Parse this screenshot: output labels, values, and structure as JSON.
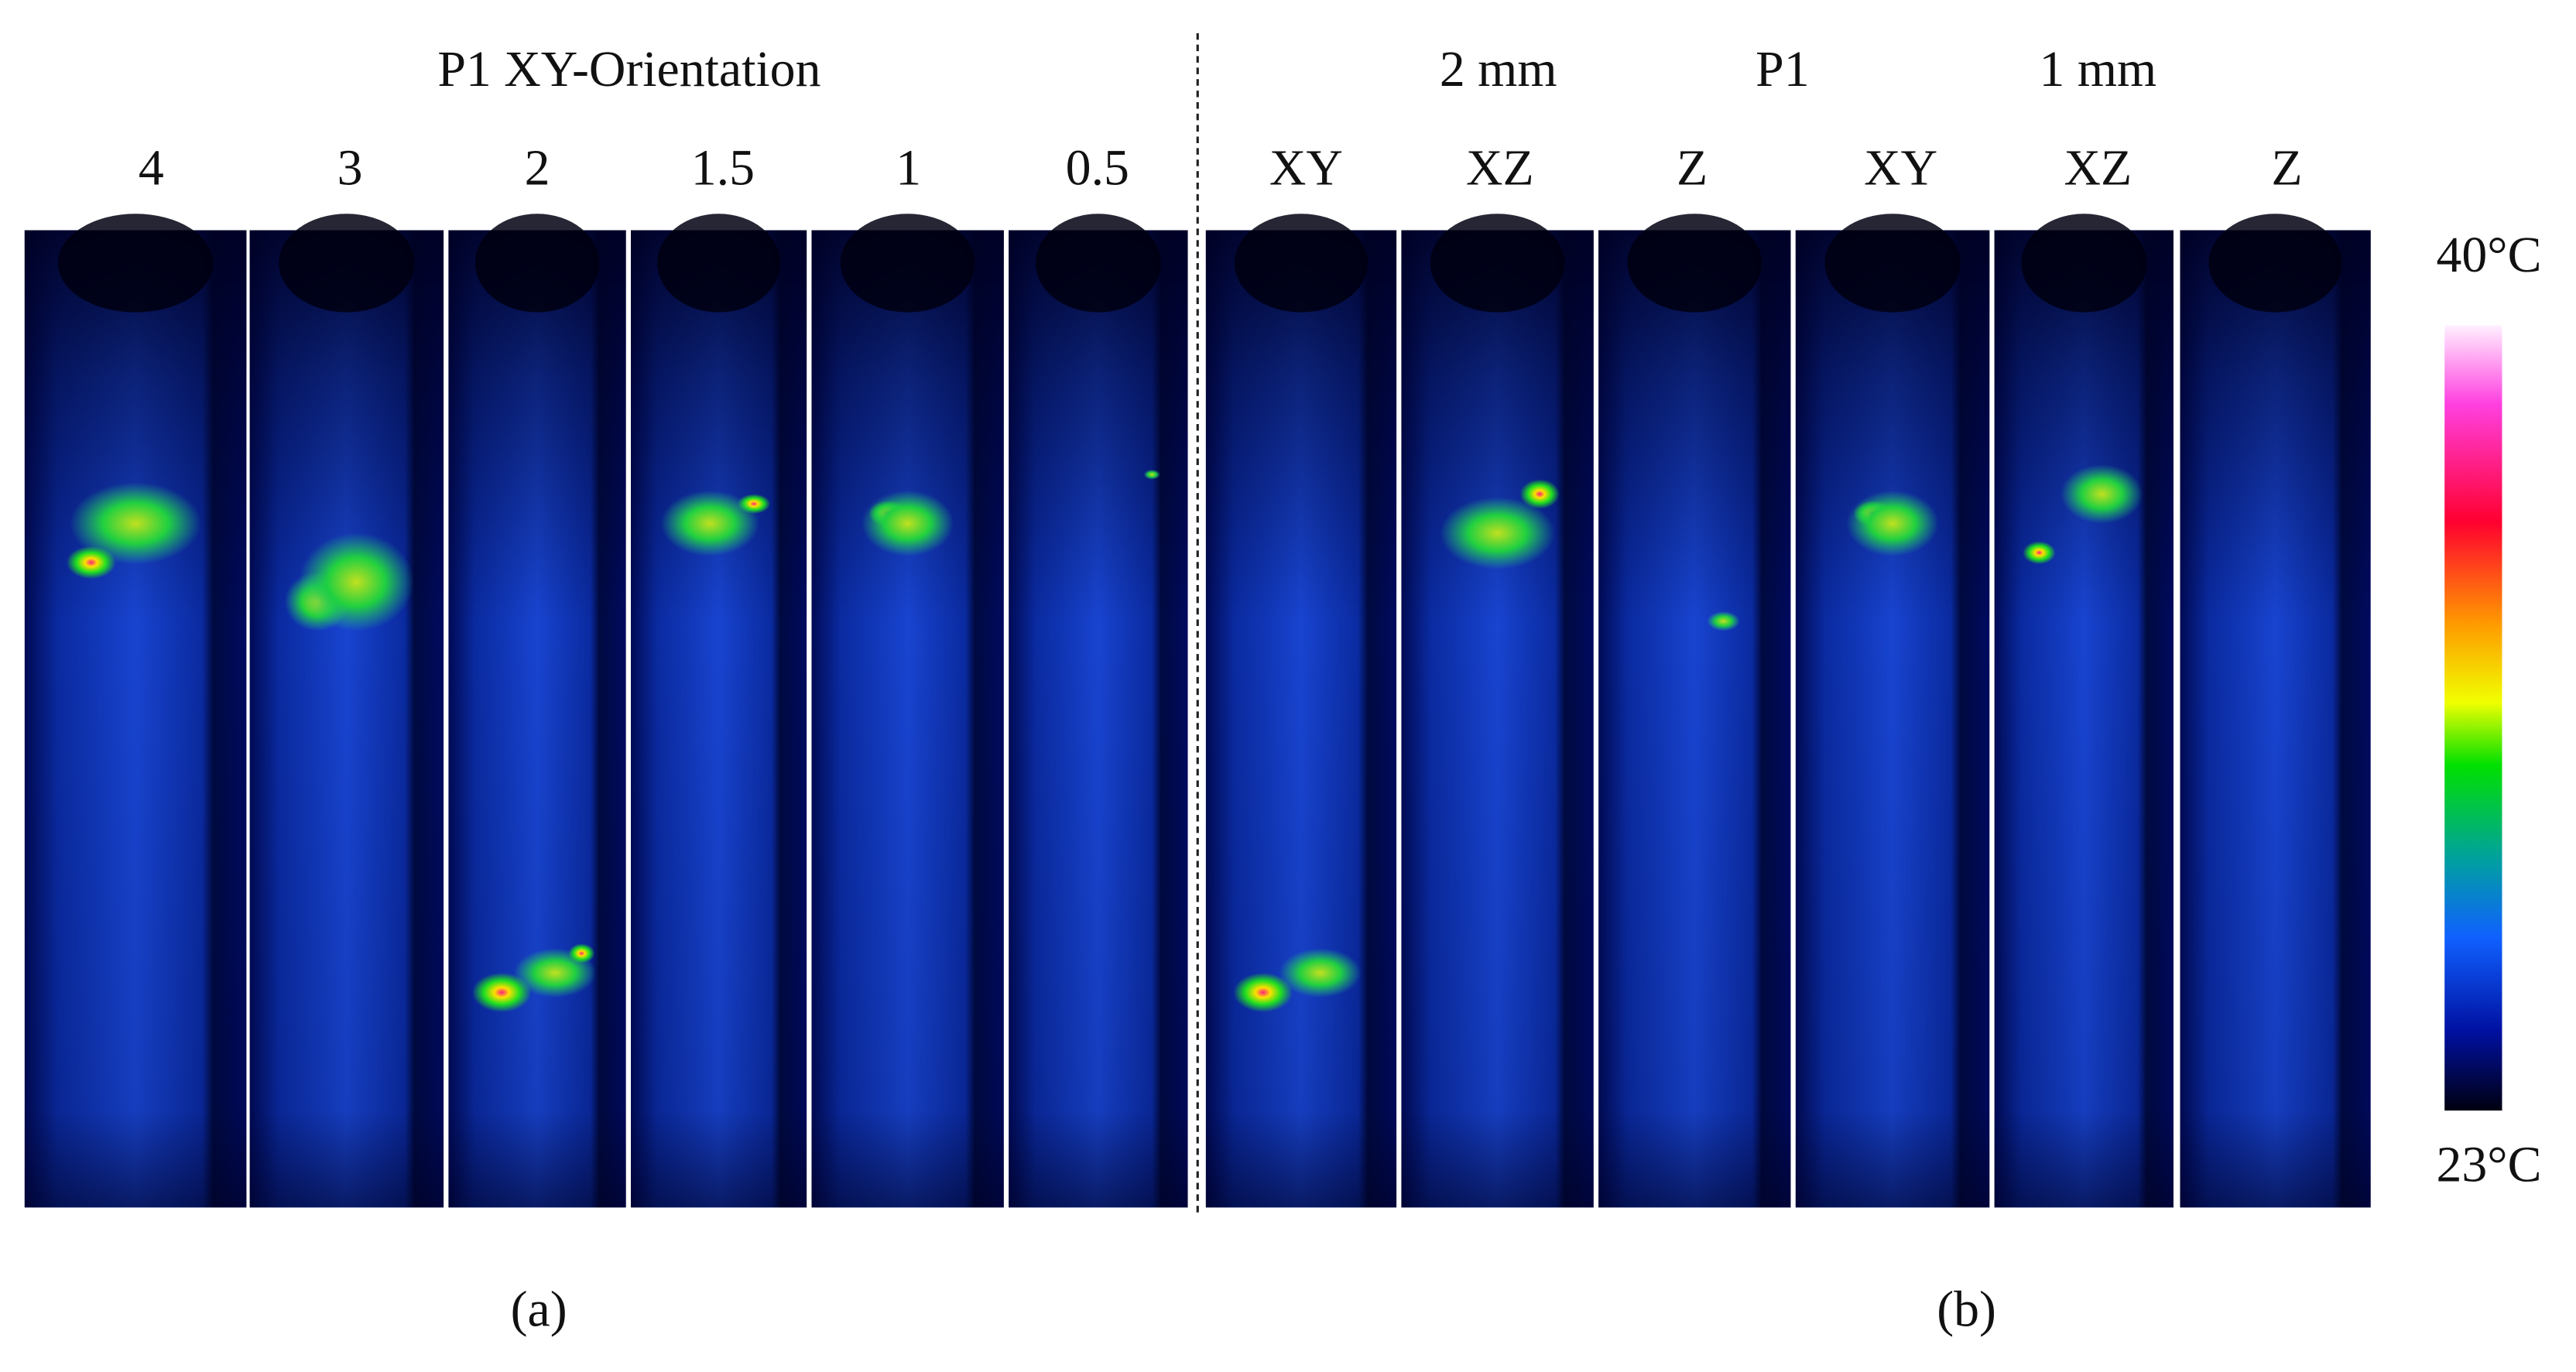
{
  "header_a": "P1 XY-Orientation",
  "header_b": [
    "2 mm",
    "P1",
    "1 mm"
  ],
  "columns_a": [
    "4",
    "3",
    "2",
    "1.5",
    "1",
    "0.5"
  ],
  "columns_b": [
    "XY",
    "XZ",
    "Z",
    "XY",
    "XZ",
    "Z"
  ],
  "colorbar": {
    "max": "40°C",
    "min": "23°C"
  },
  "captions": [
    "(a)",
    "(b)"
  ]
}
